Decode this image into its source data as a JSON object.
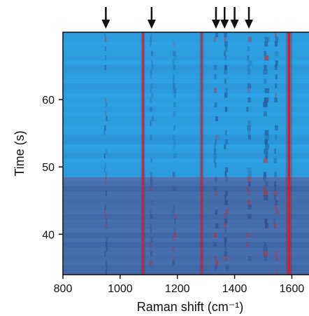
{
  "chart_data": {
    "type": "heatmap",
    "title": "",
    "xlabel": "Raman shift (cm⁻¹)",
    "ylabel": "Time (s)",
    "xlim": [
      800,
      1660
    ],
    "ylim": [
      34,
      70
    ],
    "x_ticks": [
      800,
      1000,
      1200,
      1400,
      1600
    ],
    "x_tick_labels": [
      "800",
      "1000",
      "1200",
      "1400",
      "1600"
    ],
    "y_ticks": [
      40,
      50,
      60
    ],
    "y_tick_labels": [
      "40",
      "50",
      "60"
    ],
    "colors": {
      "background": "#2ea3e6",
      "mid": "#2f5fa6",
      "high": "#d81e1e",
      "axis": "#111111"
    },
    "block_boundary_time": 48.5,
    "strong_bands": [
      {
        "shift": 1080,
        "width": 5,
        "intensity": 1.0
      },
      {
        "shift": 1285,
        "width": 5,
        "intensity": 0.85
      },
      {
        "shift": 1590,
        "width": 8,
        "intensity": 1.0
      }
    ],
    "weak_bands": [
      {
        "shift": 950,
        "width": 6,
        "intensity": 0.45
      },
      {
        "shift": 1110,
        "width": 8,
        "intensity": 0.35
      },
      {
        "shift": 1190,
        "width": 10,
        "intensity": 0.35
      },
      {
        "shift": 1335,
        "width": 10,
        "intensity": 0.5
      },
      {
        "shift": 1370,
        "width": 10,
        "intensity": 0.55
      },
      {
        "shift": 1450,
        "width": 12,
        "intensity": 0.45
      },
      {
        "shift": 1510,
        "width": 14,
        "intensity": 0.6
      },
      {
        "shift": 1545,
        "width": 10,
        "intensity": 0.5
      }
    ],
    "arrow_markers": [
      950,
      1110,
      1335,
      1365,
      1400,
      1450
    ]
  }
}
